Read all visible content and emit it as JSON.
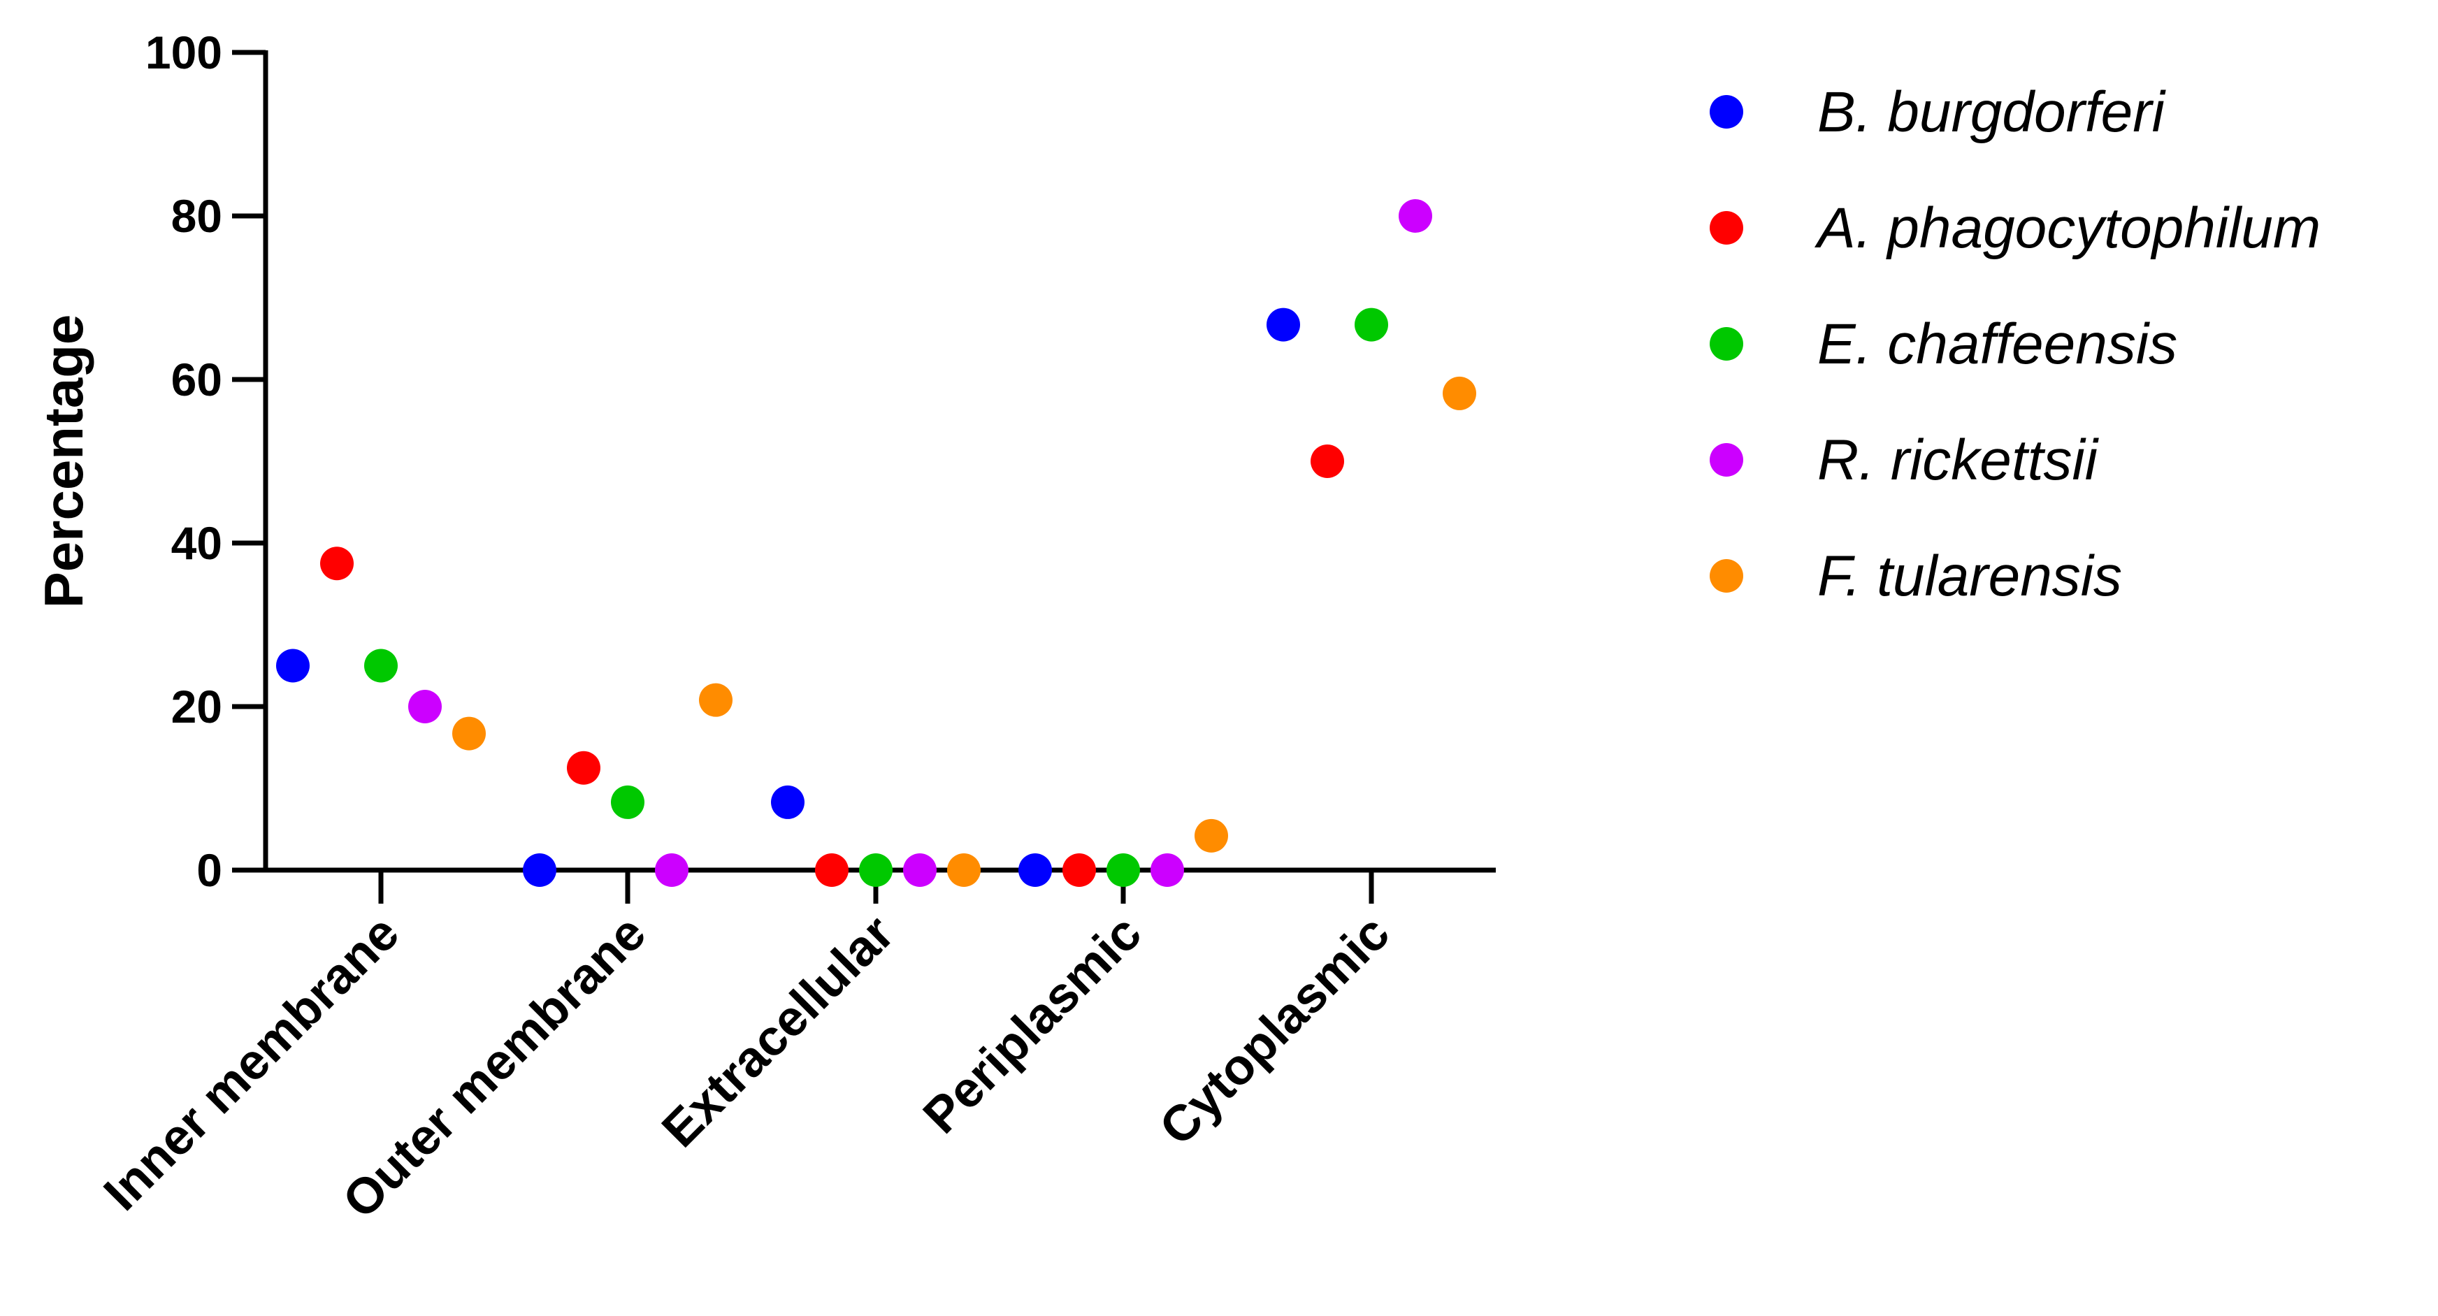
{
  "chart_data": {
    "type": "scatter",
    "title": "",
    "xlabel": "",
    "ylabel": "Percentage",
    "ylim": [
      0,
      100
    ],
    "y_ticks": [
      "0",
      "20",
      "40",
      "60",
      "80",
      "100"
    ],
    "categories": [
      "Inner membrane",
      "Outer membrane",
      "Extracellular",
      "Periplasmic",
      "Cytoplasmic"
    ],
    "grid": false,
    "legend_position": "right",
    "series": [
      {
        "name": "B. burgdorferi",
        "color": "#0000ff",
        "values": [
          25,
          0,
          8.3,
          0,
          66.7
        ]
      },
      {
        "name": "A. phagocytophilum",
        "color": "#ff0000",
        "values": [
          37.5,
          12.5,
          0,
          0,
          50
        ]
      },
      {
        "name": "E. chaffeensis",
        "color": "#00c800",
        "values": [
          25,
          8.3,
          0,
          0,
          66.7
        ]
      },
      {
        "name": "R. rickettsii",
        "color": "#cc00ff",
        "values": [
          20,
          0,
          0,
          0,
          80
        ]
      },
      {
        "name": "F. tularensis",
        "color": "#ff8c00",
        "values": [
          16.7,
          20.8,
          0,
          4.2,
          58.3
        ]
      }
    ]
  }
}
